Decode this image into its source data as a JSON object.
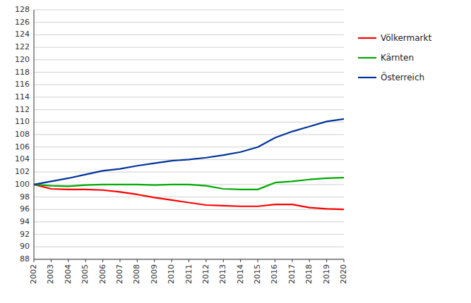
{
  "chart_data": {
    "type": "line",
    "x": [
      2002,
      2003,
      2004,
      2005,
      2006,
      2007,
      2008,
      2009,
      2010,
      2011,
      2012,
      2013,
      2014,
      2015,
      2016,
      2017,
      2018,
      2019,
      2020
    ],
    "series": [
      {
        "name": "Völkermarkt",
        "color": "#ff0000",
        "values": [
          100.0,
          99.3,
          99.2,
          99.2,
          99.1,
          98.8,
          98.4,
          97.9,
          97.5,
          97.1,
          96.7,
          96.6,
          96.5,
          96.5,
          96.8,
          96.8,
          96.3,
          96.1,
          96.0
        ]
      },
      {
        "name": "Kärnten",
        "color": "#00aa00",
        "values": [
          100.0,
          99.8,
          99.7,
          99.9,
          100.0,
          100.0,
          100.0,
          99.9,
          100.0,
          100.0,
          99.8,
          99.3,
          99.2,
          99.2,
          100.3,
          100.5,
          100.8,
          101.0,
          101.1
        ]
      },
      {
        "name": "Österreich",
        "color": "#003399",
        "values": [
          100.0,
          100.5,
          101.0,
          101.6,
          102.2,
          102.5,
          103.0,
          103.4,
          103.8,
          104.0,
          104.3,
          104.7,
          105.2,
          106.0,
          107.5,
          108.5,
          109.3,
          110.1,
          110.5
        ]
      }
    ],
    "xlim": [
      2002,
      2020
    ],
    "xticks": [
      2002,
      2003,
      2004,
      2005,
      2006,
      2007,
      2008,
      2009,
      2010,
      2011,
      2012,
      2013,
      2014,
      2015,
      2016,
      2017,
      2018,
      2019,
      2020
    ],
    "ylim": [
      88,
      128
    ],
    "yticks": [
      88,
      90,
      92,
      94,
      96,
      98,
      100,
      102,
      104,
      106,
      108,
      110,
      112,
      114,
      116,
      118,
      120,
      122,
      124,
      126,
      128
    ],
    "grid": true,
    "legend": "right"
  }
}
